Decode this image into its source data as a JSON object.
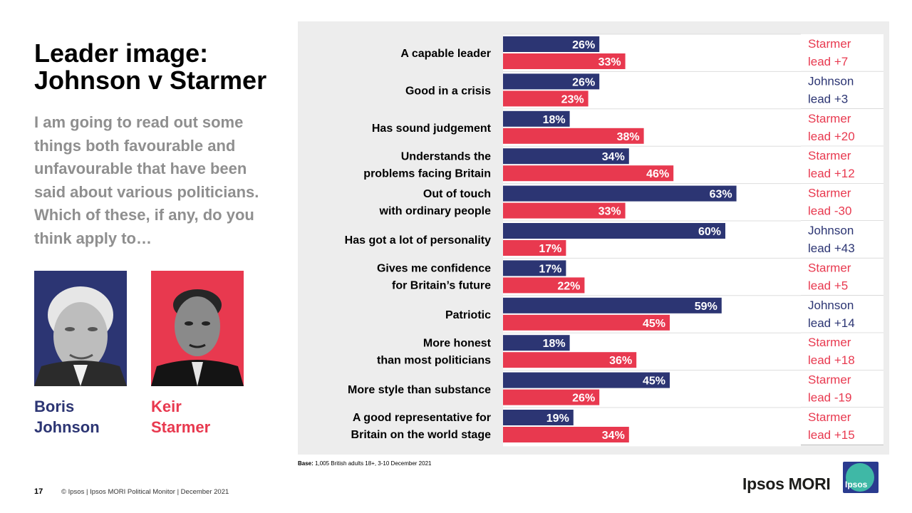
{
  "title": {
    "line1": "Leader image:",
    "line2": "Johnson v Starmer"
  },
  "question": "I am going to read out some things both favourable and unfavourable that have been said about various politicians. Which of these, if any, do you think apply to…",
  "leaders": {
    "johnson": {
      "first": "Boris",
      "last": "Johnson"
    },
    "starmer": {
      "first": "Keir",
      "last": "Starmer"
    }
  },
  "colors": {
    "johnson": "#2c3573",
    "starmer": "#e8394f",
    "chart_bg": "#ededed"
  },
  "chart_data": {
    "type": "bar",
    "orientation": "horizontal",
    "categories": [
      [
        "A capable leader"
      ],
      [
        "Good in a crisis"
      ],
      [
        "Has sound judgement"
      ],
      [
        "Understands the",
        "problems facing Britain"
      ],
      [
        "Out of touch",
        "with ordinary people"
      ],
      [
        "Has got a lot of personality"
      ],
      [
        "Gives me confidence",
        "for Britain’s future"
      ],
      [
        "Patriotic"
      ],
      [
        "More honest",
        "than most politicians"
      ],
      [
        "More style than substance"
      ],
      [
        "A good representative for",
        "Britain on the world stage"
      ]
    ],
    "series": [
      {
        "name": "Boris Johnson",
        "key": "johnson",
        "values": [
          26,
          26,
          18,
          34,
          63,
          60,
          17,
          59,
          18,
          45,
          19
        ]
      },
      {
        "name": "Keir Starmer",
        "key": "starmer",
        "values": [
          33,
          23,
          38,
          46,
          33,
          17,
          22,
          45,
          36,
          26,
          34
        ]
      }
    ],
    "value_suffix": "%",
    "xlim": [
      0,
      80
    ],
    "leads": [
      {
        "line1": "Starmer",
        "line2": "lead +7",
        "leader": "starmer"
      },
      {
        "line1": "Johnson",
        "line2": "lead +3",
        "leader": "johnson"
      },
      {
        "line1": "Starmer",
        "line2": "lead +20",
        "leader": "starmer"
      },
      {
        "line1": "Starmer",
        "line2": "lead +12",
        "leader": "starmer"
      },
      {
        "line1": "Starmer",
        "line2": "lead -30",
        "leader": "starmer"
      },
      {
        "line1": "Johnson",
        "line2": "lead +43",
        "leader": "johnson"
      },
      {
        "line1": "Starmer",
        "line2": "lead +5",
        "leader": "starmer"
      },
      {
        "line1": "Johnson",
        "line2": "lead +14",
        "leader": "johnson"
      },
      {
        "line1": "Starmer",
        "line2": "lead +18",
        "leader": "starmer"
      },
      {
        "line1": "Starmer",
        "line2": "lead -19",
        "leader": "starmer"
      },
      {
        "line1": "Starmer",
        "line2": "lead +15",
        "leader": "starmer"
      }
    ]
  },
  "base": {
    "label": "Base:",
    "text": "1,005 British adults 18+, 3-10 December 2021"
  },
  "footer": {
    "page_number": "17",
    "copyright": "© Ipsos | Ipsos MORI Political Monitor | December 2021"
  },
  "logo": {
    "text": "Ipsos MORI",
    "box_text": "Ipsos"
  }
}
